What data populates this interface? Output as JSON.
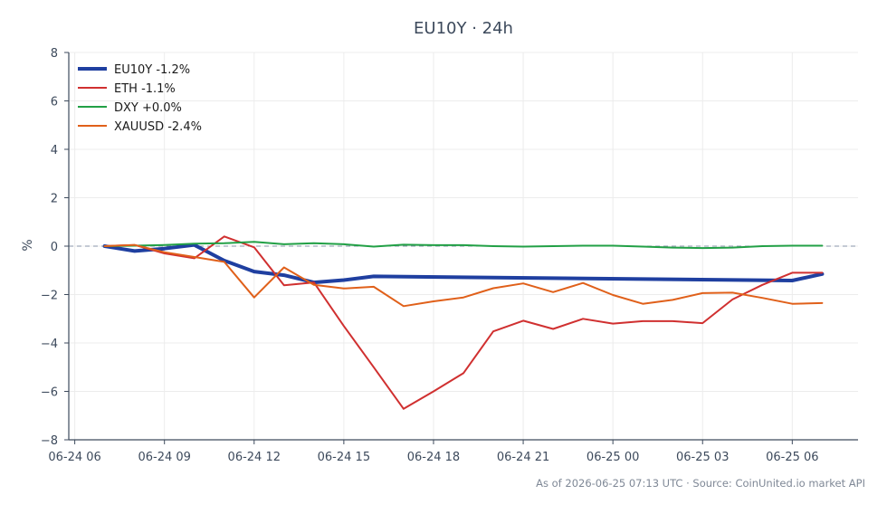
{
  "chart_data": {
    "type": "line",
    "title": "EU10Y · 24h",
    "xlabel": "",
    "ylabel": "%",
    "ylim": [
      -8,
      8
    ],
    "yticks": [
      -8,
      -6,
      -4,
      -2,
      0,
      2,
      4,
      6,
      8
    ],
    "xlim": [
      -0.2,
      26.2
    ],
    "xticks": [
      {
        "pos": 0,
        "label": "06-24 06"
      },
      {
        "pos": 3,
        "label": "06-24 09"
      },
      {
        "pos": 6,
        "label": "06-24 12"
      },
      {
        "pos": 9,
        "label": "06-24 15"
      },
      {
        "pos": 12,
        "label": "06-24 18"
      },
      {
        "pos": 15,
        "label": "06-24 21"
      },
      {
        "pos": 18,
        "label": "06-25 00"
      },
      {
        "pos": 21,
        "label": "06-25 03"
      },
      {
        "pos": 24,
        "label": "06-25 06"
      }
    ],
    "grid": true,
    "legend_position": "top-left",
    "zero_line": true,
    "series": [
      {
        "name": "EU10Y -1.2%",
        "color": "#1f3fa0",
        "width": 4,
        "x": [
          1,
          2,
          3,
          4,
          5,
          6,
          7,
          8,
          9,
          10,
          24,
          25
        ],
        "y": [
          0.0,
          -0.2,
          -0.1,
          0.05,
          -0.6,
          -1.05,
          -1.2,
          -1.5,
          -1.4,
          -1.25,
          -1.42,
          -1.15
        ]
      },
      {
        "name": "ETH -1.1%",
        "color": "#d03030",
        "width": 2,
        "x": [
          1,
          2,
          3,
          4,
          5,
          6,
          7,
          8,
          9,
          10,
          11,
          12,
          13,
          14,
          15,
          16,
          17,
          18,
          19,
          20,
          21,
          22,
          23,
          24,
          25
        ],
        "y": [
          0.0,
          0.05,
          -0.3,
          -0.5,
          0.4,
          -0.05,
          -1.62,
          -1.5,
          -3.3,
          -5.0,
          -6.72,
          -6.0,
          -5.25,
          -3.52,
          -3.08,
          -3.42,
          -3.0,
          -3.2,
          -3.1,
          -3.1,
          -3.18,
          -2.2,
          -1.6,
          -1.1,
          -1.1
        ]
      },
      {
        "name": "DXY +0.0%",
        "color": "#22a046",
        "width": 2,
        "x": [
          1,
          2,
          3,
          4,
          5,
          6,
          7,
          8,
          9,
          10,
          11,
          12,
          13,
          14,
          15,
          16,
          17,
          18,
          19,
          20,
          21,
          22,
          23,
          24,
          25
        ],
        "y": [
          0.0,
          0.02,
          0.05,
          0.1,
          0.12,
          0.18,
          0.08,
          0.12,
          0.08,
          -0.02,
          0.06,
          0.04,
          0.04,
          0.0,
          -0.02,
          0.0,
          0.02,
          0.02,
          -0.02,
          -0.06,
          -0.08,
          -0.06,
          0.0,
          0.02,
          0.02
        ]
      },
      {
        "name": "XAUUSD -2.4%",
        "color": "#e0601a",
        "width": 2,
        "x": [
          1,
          2,
          3,
          4,
          5,
          6,
          7,
          8,
          9,
          10,
          11,
          12,
          13,
          14,
          15,
          16,
          17,
          18,
          19,
          20,
          21,
          22,
          23,
          24,
          25
        ],
        "y": [
          0.0,
          0.05,
          -0.25,
          -0.45,
          -0.65,
          -2.12,
          -0.88,
          -1.6,
          -1.75,
          -1.68,
          -2.48,
          -2.28,
          -2.12,
          -1.74,
          -1.54,
          -1.9,
          -1.52,
          -2.02,
          -2.38,
          -2.22,
          -1.94,
          -1.92,
          -2.14,
          -2.38,
          -2.35
        ]
      }
    ],
    "footer": "As of 2026-06-25 07:13 UTC · Source: CoinUnited.io market API"
  }
}
